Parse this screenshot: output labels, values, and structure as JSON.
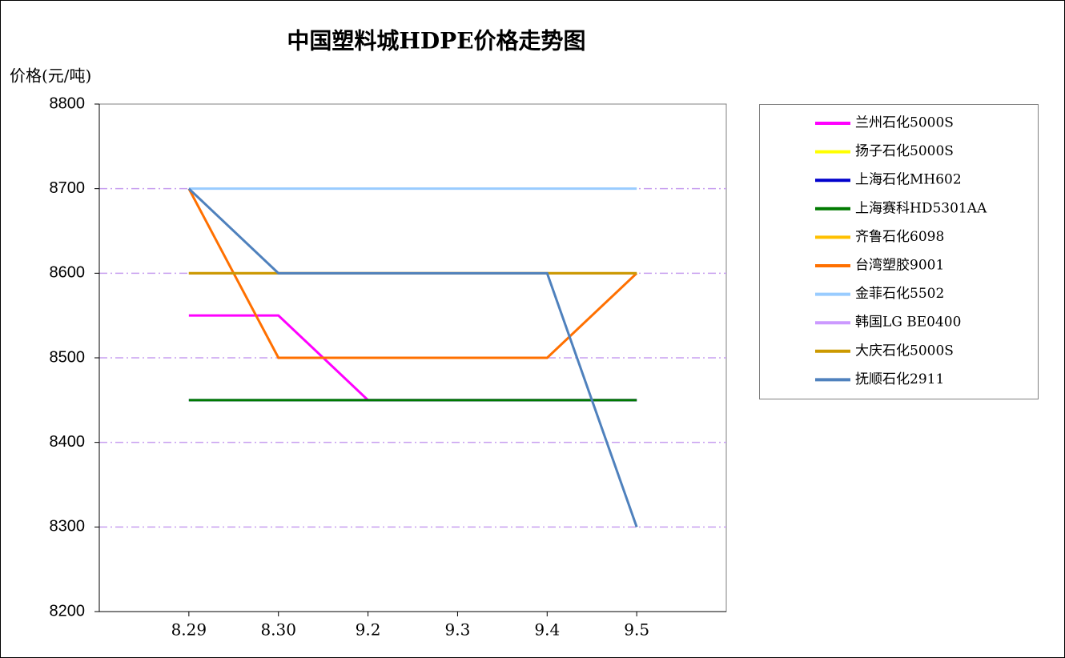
{
  "chart_data": {
    "type": "line",
    "title": "中国塑料城HDPE价格走势图",
    "y_label": "价格(元/吨)",
    "categories": [
      "8.29",
      "8.30",
      "9.2",
      "9.3",
      "9.4",
      "9.5"
    ],
    "ylim": [
      8200,
      8800
    ],
    "yticks": [
      8200,
      8300,
      8400,
      8500,
      8600,
      8700,
      8800
    ],
    "grid": true,
    "legend": "right",
    "series": [
      {
        "name": "兰州石化5000S",
        "color": "#ff00ff",
        "values": [
          8550,
          8550,
          8450,
          8450,
          8450,
          8450
        ]
      },
      {
        "name": "扬子石化5000S",
        "color": "#ffff00",
        "values": [
          8600,
          8600,
          8600,
          8600,
          8600,
          8600
        ]
      },
      {
        "name": "上海石化MH602",
        "color": "#0000cc",
        "values": [
          8450,
          8450,
          8450,
          8450,
          8450,
          8450
        ]
      },
      {
        "name": "上海赛科HD5301AA",
        "color": "#007a00",
        "values": [
          8450,
          8450,
          8450,
          8450,
          8450,
          8450
        ]
      },
      {
        "name": "齐鲁石化6098",
        "color": "#ffc000",
        "values": [
          8600,
          8600,
          8600,
          8600,
          8600,
          8600
        ]
      },
      {
        "name": "台湾塑胶9001",
        "color": "#ff7000",
        "values": [
          8700,
          8500,
          8500,
          8500,
          8500,
          8600
        ]
      },
      {
        "name": "金菲石化5502",
        "color": "#99ccff",
        "values": [
          8700,
          8700,
          8700,
          8700,
          8700,
          8700
        ]
      },
      {
        "name": "韩国LG BE0400",
        "color": "#cc99ff",
        "values": [
          8600,
          8600,
          8600,
          8600,
          8600,
          8600
        ]
      },
      {
        "name": "大庆石化5000S",
        "color": "#cc9900",
        "values": [
          8600,
          8600,
          8600,
          8600,
          8600,
          8600
        ]
      },
      {
        "name": "抚顺石化2911",
        "color": "#4f81bd",
        "values": [
          8700,
          8600,
          8600,
          8600,
          8600,
          8300
        ]
      }
    ]
  }
}
